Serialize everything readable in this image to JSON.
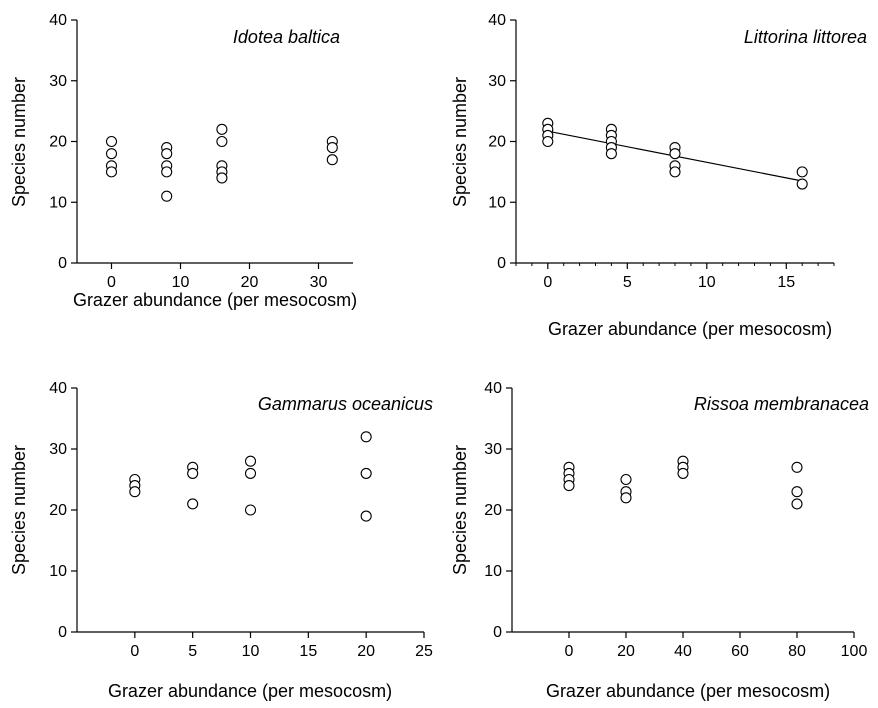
{
  "chart_data": [
    {
      "type": "scatter",
      "title": "Idotea baltica",
      "xlabel": "Grazer abundance (per mesocosm)",
      "ylabel": "Species number",
      "xlim": [
        -5,
        35
      ],
      "ylim": [
        0,
        40
      ],
      "xticks": [
        0,
        10,
        20,
        30
      ],
      "yticks": [
        0,
        10,
        20,
        30,
        40
      ],
      "points": [
        {
          "x": 0,
          "y": 20
        },
        {
          "x": 0,
          "y": 18
        },
        {
          "x": 0,
          "y": 16
        },
        {
          "x": 0,
          "y": 15
        },
        {
          "x": 8,
          "y": 19
        },
        {
          "x": 8,
          "y": 18
        },
        {
          "x": 8,
          "y": 16
        },
        {
          "x": 8,
          "y": 15
        },
        {
          "x": 8,
          "y": 11
        },
        {
          "x": 16,
          "y": 22
        },
        {
          "x": 16,
          "y": 20
        },
        {
          "x": 16,
          "y": 16
        },
        {
          "x": 16,
          "y": 15
        },
        {
          "x": 16,
          "y": 14
        },
        {
          "x": 32,
          "y": 20
        },
        {
          "x": 32,
          "y": 19
        },
        {
          "x": 32,
          "y": 17
        }
      ]
    },
    {
      "type": "scatter",
      "title": "Littorina littorea",
      "xlabel": "Grazer abundance (per mesocosm)",
      "ylabel": "Species number",
      "xlim": [
        -2,
        18
      ],
      "ylim": [
        0,
        40
      ],
      "xticks": [
        0,
        5,
        10,
        15
      ],
      "yticks": [
        0,
        10,
        20,
        30,
        40
      ],
      "minor_xticks": true,
      "points": [
        {
          "x": 0,
          "y": 23
        },
        {
          "x": 0,
          "y": 22
        },
        {
          "x": 0,
          "y": 21
        },
        {
          "x": 0,
          "y": 20
        },
        {
          "x": 4,
          "y": 22
        },
        {
          "x": 4,
          "y": 21
        },
        {
          "x": 4,
          "y": 20
        },
        {
          "x": 4,
          "y": 19
        },
        {
          "x": 4,
          "y": 18
        },
        {
          "x": 8,
          "y": 19
        },
        {
          "x": 8,
          "y": 18
        },
        {
          "x": 8,
          "y": 16
        },
        {
          "x": 8,
          "y": 15
        },
        {
          "x": 16,
          "y": 15
        },
        {
          "x": 16,
          "y": 13
        }
      ],
      "fit_line": {
        "x": [
          0,
          16
        ],
        "y": [
          21.7,
          13.5
        ]
      }
    },
    {
      "type": "scatter",
      "title": "Gammarus oceanicus",
      "xlabel": "Grazer abundance (per mesocosm)",
      "ylabel": "Species number",
      "xlim": [
        -5,
        25
      ],
      "ylim": [
        0,
        40
      ],
      "xticks": [
        0,
        5,
        10,
        15,
        20,
        25
      ],
      "yticks": [
        0,
        10,
        20,
        30,
        40
      ],
      "points": [
        {
          "x": 0,
          "y": 25
        },
        {
          "x": 0,
          "y": 24
        },
        {
          "x": 0,
          "y": 23
        },
        {
          "x": 5,
          "y": 27
        },
        {
          "x": 5,
          "y": 26
        },
        {
          "x": 5,
          "y": 21
        },
        {
          "x": 10,
          "y": 28
        },
        {
          "x": 10,
          "y": 26
        },
        {
          "x": 10,
          "y": 20
        },
        {
          "x": 20,
          "y": 32
        },
        {
          "x": 20,
          "y": 26
        },
        {
          "x": 20,
          "y": 19
        }
      ]
    },
    {
      "type": "scatter",
      "title": "Rissoa membranacea",
      "xlabel": "Grazer abundance (per mesocosm)",
      "ylabel": "Species number",
      "xlim": [
        -20,
        100
      ],
      "ylim": [
        0,
        40
      ],
      "xticks": [
        0,
        20,
        40,
        60,
        80,
        100
      ],
      "yticks": [
        0,
        10,
        20,
        30,
        40
      ],
      "points": [
        {
          "x": 0,
          "y": 27
        },
        {
          "x": 0,
          "y": 26
        },
        {
          "x": 0,
          "y": 25
        },
        {
          "x": 0,
          "y": 24
        },
        {
          "x": 20,
          "y": 25
        },
        {
          "x": 20,
          "y": 23
        },
        {
          "x": 20,
          "y": 22
        },
        {
          "x": 40,
          "y": 28
        },
        {
          "x": 40,
          "y": 27
        },
        {
          "x": 40,
          "y": 26
        },
        {
          "x": 80,
          "y": 27
        },
        {
          "x": 80,
          "y": 23
        },
        {
          "x": 80,
          "y": 21
        }
      ]
    }
  ]
}
